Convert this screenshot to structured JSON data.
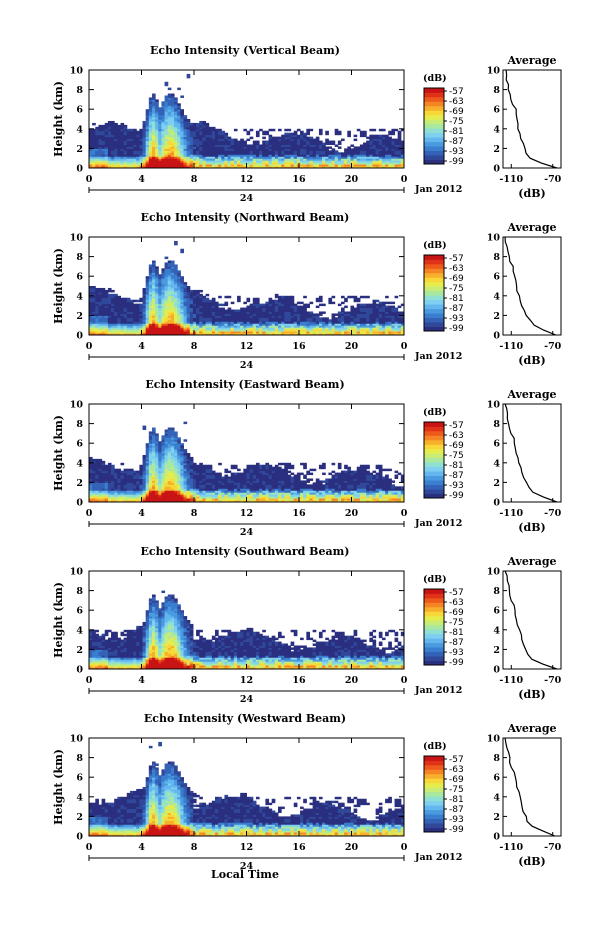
{
  "figure": {
    "xlabel": "Local Time",
    "ylabel": "Height (km)",
    "date_label": "Jan 2012",
    "day_label": "24",
    "avg_title": "Average",
    "avg_xlabel": "(dB)",
    "cb_unit": "(dB)",
    "colorbar_ticks": [
      "-57",
      "-63",
      "-69",
      "-75",
      "-81",
      "-87",
      "-93",
      "-99"
    ],
    "colormap": [
      "#2b2f7f",
      "#30489a",
      "#3462b6",
      "#3a7ecf",
      "#4a9ae0",
      "#63b6ee",
      "#7fd0f0",
      "#8fe0d2",
      "#a8e8a0",
      "#c8ec76",
      "#e6ec4c",
      "#f8d838",
      "#f8b02c",
      "#f48424",
      "#ee5a1c",
      "#e03216",
      "#c81414"
    ]
  },
  "chart_data": [
    {
      "type": "heatmap",
      "title": "Echo Intensity (Vertical Beam)",
      "xlabel": "Local Time",
      "ylabel": "Height (km)",
      "x_ticks": [
        "0",
        "4",
        "8",
        "12",
        "16",
        "20",
        "0"
      ],
      "y_ticks": [
        "0",
        "2",
        "4",
        "6",
        "8",
        "10"
      ],
      "xlim": [
        0,
        24
      ],
      "ylim": [
        0,
        10
      ],
      "color_range_db": [
        -99,
        -57
      ],
      "profile": {
        "title": "Average",
        "xlabel": "(dB)",
        "x_ticks": [
          "-110",
          "-70"
        ],
        "xlim": [
          -118,
          -62
        ],
        "height_km": [
          0,
          0.5,
          1,
          1.5,
          2,
          2.5,
          3,
          3.5,
          4,
          4.5,
          5,
          5.5,
          6,
          6.5,
          7,
          7.5,
          8,
          8.5,
          9,
          9.5,
          10
        ],
        "echo_db": [
          -66,
          -80,
          -92,
          -95,
          -97,
          -99,
          -101,
          -102,
          -103,
          -104,
          -105,
          -105,
          -106,
          -108,
          -110,
          -111,
          -112,
          -113,
          -114,
          -115,
          -115
        ]
      }
    },
    {
      "type": "heatmap",
      "title": "Echo Intensity (Northward Beam)",
      "xlabel": "Local Time",
      "ylabel": "Height (km)",
      "x_ticks": [
        "0",
        "4",
        "8",
        "12",
        "16",
        "20",
        "0"
      ],
      "y_ticks": [
        "0",
        "2",
        "4",
        "6",
        "8",
        "10"
      ],
      "xlim": [
        0,
        24
      ],
      "ylim": [
        0,
        10
      ],
      "color_range_db": [
        -99,
        -57
      ],
      "profile": {
        "title": "Average",
        "xlabel": "(dB)",
        "x_ticks": [
          "-110",
          "-70"
        ],
        "xlim": [
          -118,
          -62
        ],
        "height_km": [
          0,
          0.5,
          1,
          1.5,
          2,
          2.5,
          3,
          3.5,
          4,
          4.5,
          5,
          5.5,
          6,
          6.5,
          7,
          7.5,
          8,
          8.5,
          9,
          9.5,
          10
        ],
        "echo_db": [
          -67,
          -78,
          -88,
          -92,
          -95,
          -98,
          -100,
          -101,
          -102,
          -104,
          -105,
          -106,
          -107,
          -108,
          -109,
          -111,
          -112,
          -113,
          -114,
          -115,
          -116
        ]
      }
    },
    {
      "type": "heatmap",
      "title": "Echo Intensity (Eastward Beam)",
      "xlabel": "Local Time",
      "ylabel": "Height (km)",
      "x_ticks": [
        "0",
        "4",
        "8",
        "12",
        "16",
        "20",
        "0"
      ],
      "y_ticks": [
        "0",
        "2",
        "4",
        "6",
        "8",
        "10"
      ],
      "xlim": [
        0,
        24
      ],
      "ylim": [
        0,
        10
      ],
      "color_range_db": [
        -99,
        -57
      ],
      "profile": {
        "title": "Average",
        "xlabel": "(dB)",
        "x_ticks": [
          "-110",
          "-70"
        ],
        "xlim": [
          -118,
          -62
        ],
        "height_km": [
          0,
          0.5,
          1,
          1.5,
          2,
          2.5,
          3,
          3.5,
          4,
          4.5,
          5,
          5.5,
          6,
          6.5,
          7,
          7.5,
          8,
          8.5,
          9,
          9.5,
          10
        ],
        "echo_db": [
          -66,
          -79,
          -89,
          -93,
          -96,
          -98,
          -100,
          -101,
          -103,
          -104,
          -105,
          -106,
          -107,
          -108,
          -110,
          -111,
          -112,
          -113,
          -114,
          -115,
          -116
        ]
      }
    },
    {
      "type": "heatmap",
      "title": "Echo Intensity (Southward Beam)",
      "xlabel": "Local Time",
      "ylabel": "Height (km)",
      "x_ticks": [
        "0",
        "4",
        "8",
        "12",
        "16",
        "20",
        "0"
      ],
      "y_ticks": [
        "0",
        "2",
        "4",
        "6",
        "8",
        "10"
      ],
      "xlim": [
        0,
        24
      ],
      "ylim": [
        0,
        10
      ],
      "color_range_db": [
        -99,
        -57
      ],
      "profile": {
        "title": "Average",
        "xlabel": "(dB)",
        "x_ticks": [
          "-110",
          "-70"
        ],
        "xlim": [
          -118,
          -62
        ],
        "height_km": [
          0,
          0.5,
          1,
          1.5,
          2,
          2.5,
          3,
          3.5,
          4,
          4.5,
          5,
          5.5,
          6,
          6.5,
          7,
          7.5,
          8,
          8.5,
          9,
          9.5,
          10
        ],
        "echo_db": [
          -66,
          -80,
          -90,
          -94,
          -97,
          -99,
          -100,
          -101,
          -102,
          -104,
          -105,
          -106,
          -107,
          -108,
          -110,
          -111,
          -112,
          -113,
          -114,
          -115,
          -116
        ]
      }
    },
    {
      "type": "heatmap",
      "title": "Echo Intensity (Westward Beam)",
      "xlabel": "Local Time",
      "ylabel": "Height (km)",
      "x_ticks": [
        "0",
        "4",
        "8",
        "12",
        "16",
        "20",
        "0"
      ],
      "y_ticks": [
        "0",
        "2",
        "4",
        "6",
        "8",
        "10"
      ],
      "xlim": [
        0,
        24
      ],
      "ylim": [
        0,
        10
      ],
      "color_range_db": [
        -99,
        -57
      ],
      "profile": {
        "title": "Average",
        "xlabel": "(dB)",
        "x_ticks": [
          "-110",
          "-70"
        ],
        "xlim": [
          -118,
          -62
        ],
        "height_km": [
          0,
          0.5,
          1,
          1.5,
          2,
          2.5,
          3,
          3.5,
          4,
          4.5,
          5,
          5.5,
          6,
          6.5,
          7,
          7.5,
          8,
          8.5,
          9,
          9.5,
          10
        ],
        "echo_db": [
          -68,
          -80,
          -90,
          -94,
          -96,
          -98,
          -100,
          -101,
          -102,
          -103,
          -104,
          -105,
          -106,
          -108,
          -109,
          -111,
          -112,
          -113,
          -114,
          -115,
          -116
        ]
      }
    }
  ]
}
